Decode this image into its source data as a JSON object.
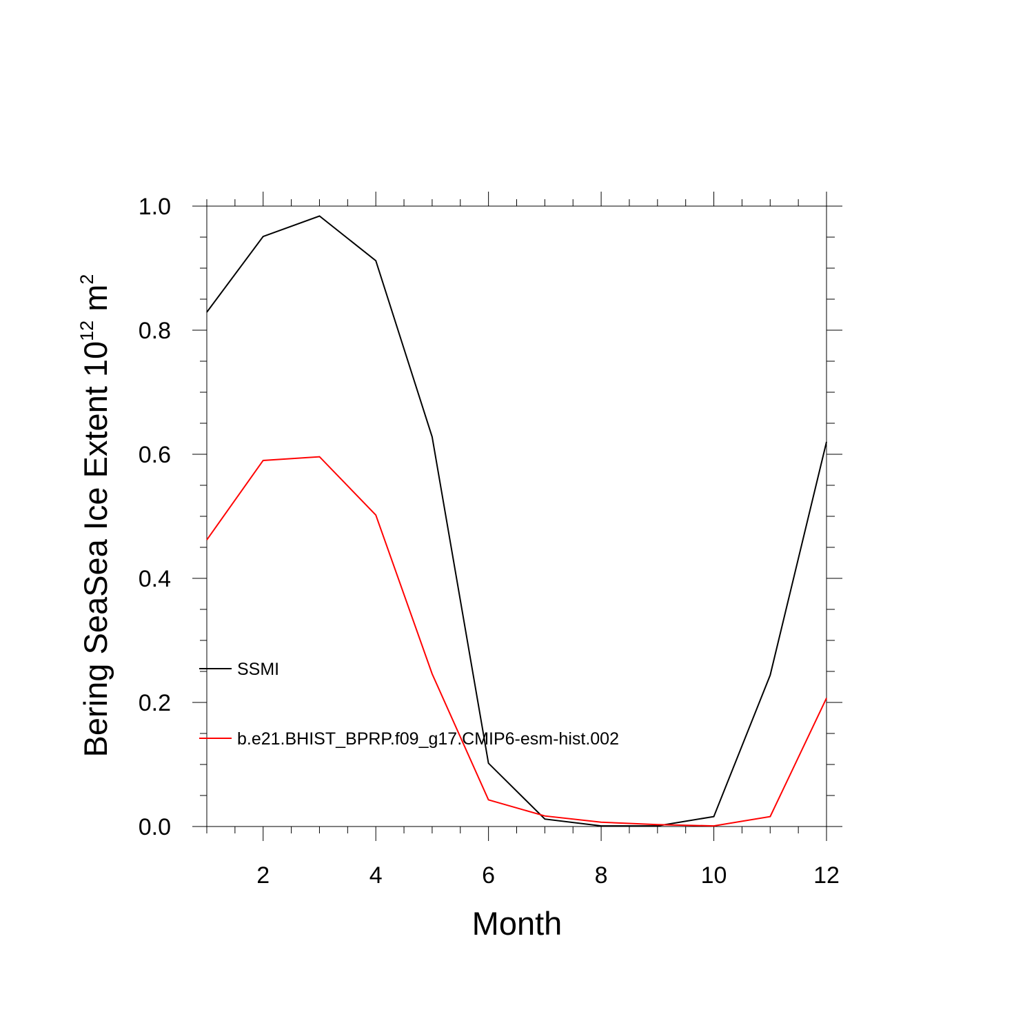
{
  "chart_data": {
    "type": "line",
    "title": "",
    "xlabel": "Month",
    "ylabel": {
      "main": "Bering SeaSea Ice Extent 10",
      "exponent": "12",
      "unit": " m",
      "unit_exponent": "2"
    },
    "xlim": [
      1,
      12
    ],
    "ylim": [
      0,
      1
    ],
    "x": [
      1,
      2,
      3,
      4,
      5,
      6,
      7,
      8,
      9,
      10,
      11,
      12
    ],
    "x_ticks": [
      2,
      4,
      6,
      8,
      10,
      12
    ],
    "x_tick_labels": [
      "2",
      "4",
      "6",
      "8",
      "10",
      "12"
    ],
    "y_ticks": [
      0,
      0.2,
      0.4,
      0.6,
      0.8,
      1.0
    ],
    "y_tick_labels": [
      "0.0",
      "0.2",
      "0.4",
      "0.6",
      "0.8",
      "1.0"
    ],
    "grid": false,
    "legend_placement": "left, inside plot",
    "series": [
      {
        "name": "SSMI",
        "color": "#000000",
        "values": [
          0.829,
          0.951,
          0.984,
          0.912,
          0.628,
          0.102,
          0.012,
          0.001,
          0.001,
          0.016,
          0.244,
          0.62
        ]
      },
      {
        "name": "b.e21.BHIST_BPRP.f09_g17.CMIP6-esm-hist.002",
        "color": "#ff0000",
        "values": [
          0.462,
          0.59,
          0.596,
          0.502,
          0.246,
          0.043,
          0.017,
          0.007,
          0.003,
          0.001,
          0.016,
          0.207
        ]
      }
    ]
  }
}
